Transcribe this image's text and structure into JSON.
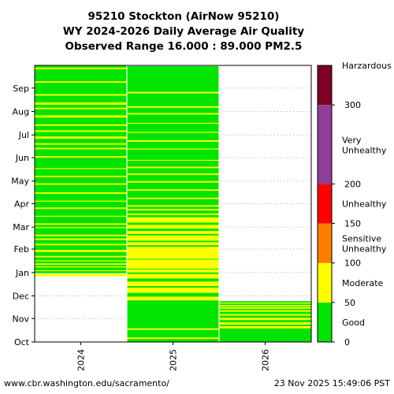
{
  "chart_data": {
    "type": "heatmap",
    "title": [
      "95210 Stockton (AirNow 95210)",
      "WY 2024-2026 Daily Average Air Quality",
      "Observed Range 16.000 : 89.000 PM2.5"
    ],
    "x_categories": [
      "2024",
      "2025",
      "2026"
    ],
    "y_ticks": [
      "Oct",
      "Nov",
      "Dec",
      "Jan",
      "Feb",
      "Mar",
      "Apr",
      "May",
      "Jun",
      "Jul",
      "Aug",
      "Sep"
    ],
    "colorbar": {
      "levels": [
        {
          "name": "Good",
          "min": 0,
          "max": 50,
          "color": "#00e400"
        },
        {
          "name": "Moderate",
          "min": 50,
          "max": 100,
          "color": "#ffff00"
        },
        {
          "name": "Sensitive Unhealthy",
          "min": 100,
          "max": 150,
          "color": "#ff7e00"
        },
        {
          "name": "Unhealthy",
          "min": 150,
          "max": 200,
          "color": "#ff0000"
        },
        {
          "name": "Very Unhealthy",
          "min": 200,
          "max": 300,
          "color": "#8f3f97"
        },
        {
          "name": "Harzardous",
          "min": 300,
          "max": 350,
          "color": "#7e0023"
        }
      ],
      "ticks": [
        0,
        50,
        100,
        150,
        200,
        300
      ]
    },
    "columns": [
      {
        "year": "2024",
        "band_color": "#00e400",
        "moderate_days": [
          [
            87,
            89
          ],
          [
            94,
            94
          ],
          [
            99,
            99
          ],
          [
            102,
            103
          ],
          [
            107,
            107
          ],
          [
            112,
            113
          ],
          [
            119,
            121
          ],
          [
            128,
            129
          ],
          [
            135,
            136
          ],
          [
            140,
            141
          ],
          [
            151,
            151
          ],
          [
            155,
            156
          ],
          [
            166,
            166
          ],
          [
            176,
            177
          ],
          [
            186,
            186
          ],
          [
            196,
            197
          ],
          [
            208,
            209
          ],
          [
            218,
            219
          ],
          [
            229,
            229
          ],
          [
            244,
            245
          ],
          [
            255,
            256
          ],
          [
            261,
            262
          ],
          [
            269,
            271
          ],
          [
            278,
            279
          ],
          [
            286,
            287
          ],
          [
            297,
            299
          ],
          [
            308,
            309
          ],
          [
            314,
            316
          ],
          [
            326,
            327
          ],
          [
            343,
            344
          ],
          [
            361,
            362
          ]
        ]
      },
      {
        "year": "2025",
        "band_color": "#00e400",
        "moderate_days": [
          [
            4,
            5
          ],
          [
            16,
            17
          ],
          [
            55,
            59
          ],
          [
            65,
            71
          ],
          [
            74,
            79
          ],
          [
            84,
            89
          ],
          [
            92,
            95
          ],
          [
            97,
            108
          ],
          [
            110,
            125
          ],
          [
            128,
            131
          ],
          [
            134,
            140
          ],
          [
            143,
            146
          ],
          [
            150,
            154
          ],
          [
            158,
            164
          ],
          [
            168,
            169
          ],
          [
            174,
            175
          ],
          [
            179,
            180
          ],
          [
            189,
            190
          ],
          [
            200,
            201
          ],
          [
            211,
            212
          ],
          [
            221,
            222
          ],
          [
            230,
            231
          ],
          [
            240,
            240
          ],
          [
            255,
            255
          ],
          [
            265,
            266
          ],
          [
            277,
            277
          ],
          [
            289,
            289
          ],
          [
            301,
            302
          ],
          [
            310,
            311
          ],
          [
            329,
            330
          ]
        ]
      },
      {
        "year": "2026",
        "band_color": "#00e400",
        "moderate_days": [
          [
            18,
            20
          ],
          [
            23,
            25
          ],
          [
            29,
            31
          ],
          [
            35,
            36
          ],
          [
            40,
            41
          ],
          [
            44,
            45
          ],
          [
            47,
            48
          ],
          [
            51,
            51
          ]
        ]
      }
    ],
    "column_extent_days": [
      366,
      365,
      54
    ],
    "column_start_day": [
      91,
      0,
      0
    ]
  },
  "footer": {
    "source": "www.cbr.washington.edu/sacramento/",
    "timestamp": "23 Nov 2025 15:49:06 PST"
  }
}
